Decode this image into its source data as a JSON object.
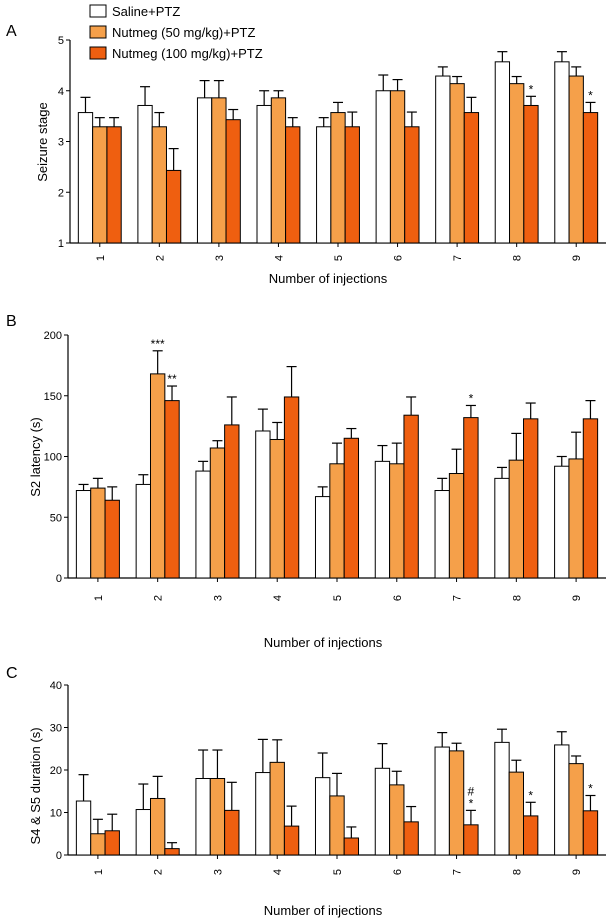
{
  "colors": {
    "saline": "#ffffff",
    "nutmeg50": "#f5a04a",
    "nutmeg100": "#ef5f10",
    "stroke": "#000000"
  },
  "legend": [
    {
      "label": "Saline+PTZ",
      "color": "#ffffff"
    },
    {
      "label": "Nutmeg (50 mg/kg)+PTZ",
      "color": "#f5a04a"
    },
    {
      "label": "Nutmeg (100 mg/kg)+PTZ",
      "color": "#ef5f10"
    }
  ],
  "chart_data": [
    {
      "panel": "A",
      "type": "bar",
      "ylabel": "Seizure stage",
      "xlabel": "Number of injections",
      "categories": [
        "1",
        "2",
        "3",
        "4",
        "5",
        "6",
        "7",
        "8",
        "9"
      ],
      "ylim": [
        1,
        5
      ],
      "yticks": [
        "1",
        "2",
        "3",
        "4",
        "5"
      ],
      "series": [
        {
          "name": "Saline+PTZ",
          "values": [
            3.57,
            3.71,
            3.86,
            3.71,
            3.29,
            4.0,
            4.29,
            4.57,
            4.57
          ],
          "errors": [
            0.3,
            0.37,
            0.34,
            0.29,
            0.18,
            0.31,
            0.18,
            0.2,
            0.2
          ]
        },
        {
          "name": "Nutmeg (50 mg/kg)+PTZ",
          "values": [
            3.29,
            3.29,
            3.86,
            3.86,
            3.57,
            4.0,
            4.14,
            4.14,
            4.29
          ],
          "errors": [
            0.18,
            0.28,
            0.34,
            0.14,
            0.2,
            0.22,
            0.14,
            0.14,
            0.18
          ]
        },
        {
          "name": "Nutmeg (100 mg/kg)+PTZ",
          "values": [
            3.29,
            2.43,
            3.43,
            3.29,
            3.29,
            3.29,
            3.57,
            3.71,
            3.57
          ],
          "errors": [
            0.18,
            0.43,
            0.2,
            0.18,
            0.29,
            0.29,
            0.3,
            0.18,
            0.2
          ]
        }
      ],
      "annotations": [
        {
          "category": "8",
          "series": 2,
          "text": "*"
        },
        {
          "category": "9",
          "series": 2,
          "text": "*"
        }
      ]
    },
    {
      "panel": "B",
      "type": "bar",
      "ylabel": "S2 latency (s)",
      "xlabel": "Number of injections",
      "categories": [
        "1",
        "2",
        "3",
        "4",
        "5",
        "6",
        "7",
        "8",
        "9"
      ],
      "ylim": [
        0,
        200
      ],
      "yticks": [
        "0",
        "50",
        "100",
        "150",
        "200"
      ],
      "series": [
        {
          "name": "Saline+PTZ",
          "values": [
            72,
            77,
            88,
            121,
            67,
            96,
            72,
            82,
            92
          ],
          "errors": [
            5,
            8,
            8,
            18,
            8,
            13,
            10,
            9,
            8
          ]
        },
        {
          "name": "Nutmeg (50 mg/kg)+PTZ",
          "values": [
            74,
            168,
            107,
            114,
            94,
            94,
            86,
            97,
            98
          ],
          "errors": [
            8,
            19,
            6,
            14,
            17,
            17,
            20,
            22,
            22
          ]
        },
        {
          "name": "Nutmeg (100 mg/kg)+PTZ",
          "values": [
            64,
            146,
            126,
            149,
            115,
            134,
            132,
            131,
            131
          ],
          "errors": [
            11,
            12,
            23,
            25,
            8,
            15,
            10,
            13,
            15
          ]
        }
      ],
      "annotations": [
        {
          "category": "2",
          "series": 1,
          "text": "***"
        },
        {
          "category": "2",
          "series": 2,
          "text": "**"
        },
        {
          "category": "7",
          "series": 2,
          "text": "*"
        }
      ]
    },
    {
      "panel": "C",
      "type": "bar",
      "ylabel": "S4 & S5 duration (s)",
      "xlabel": "Number of injections",
      "categories": [
        "1",
        "2",
        "3",
        "4",
        "5",
        "6",
        "7",
        "8",
        "9"
      ],
      "ylim": [
        0,
        40
      ],
      "yticks": [
        "0",
        "10",
        "20",
        "30",
        "40"
      ],
      "series": [
        {
          "name": "Saline+PTZ",
          "values": [
            12.7,
            10.7,
            18,
            19.4,
            18.2,
            20.4,
            25.4,
            26.5,
            25.9
          ],
          "errors": [
            6.2,
            6,
            6.7,
            7.8,
            5.8,
            5.8,
            3.4,
            3.1,
            3.1
          ]
        },
        {
          "name": "Nutmeg (50 mg/kg)+PTZ",
          "values": [
            5,
            13.3,
            18,
            21.8,
            13.9,
            16.5,
            24.5,
            19.5,
            21.5
          ],
          "errors": [
            3.4,
            5.2,
            6.7,
            5.3,
            5.3,
            3.2,
            1.8,
            2.8,
            1.8
          ]
        },
        {
          "name": "Nutmeg (100 mg/kg)+PTZ",
          "values": [
            5.7,
            1.5,
            10.5,
            6.8,
            4,
            7.8,
            7.1,
            9.2,
            10.4
          ],
          "errors": [
            3.9,
            1.4,
            6.6,
            4.7,
            2.6,
            3.6,
            3.4,
            3.2,
            3.6
          ]
        }
      ],
      "annotations": [
        {
          "category": "7",
          "series": 2,
          "text": "*"
        },
        {
          "category": "7",
          "series": 2,
          "text": "#"
        },
        {
          "category": "8",
          "series": 2,
          "text": "*"
        },
        {
          "category": "9",
          "series": 2,
          "text": "*"
        }
      ]
    }
  ]
}
